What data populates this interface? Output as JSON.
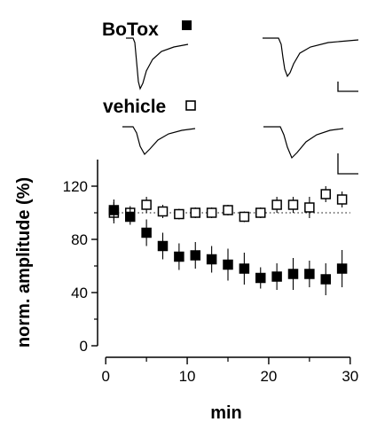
{
  "legend": {
    "botox_label": "BoTox",
    "vehicle_label": "vehicle"
  },
  "chart_data": {
    "type": "scatter",
    "xlabel": "min",
    "ylabel": "norm. amplitude (%)",
    "xlim": [
      -1,
      31
    ],
    "ylim": [
      0,
      140
    ],
    "xticks": [
      0,
      10,
      20,
      30
    ],
    "yticks": [
      0,
      40,
      80,
      120
    ],
    "y_minor_ticks": [
      20,
      60,
      100
    ],
    "reference_line": 100,
    "grid": false,
    "legend_position": "top",
    "series": [
      {
        "name": "BoTox",
        "marker": "filled-square",
        "color": "#000000",
        "x": [
          1,
          3,
          5,
          7,
          9,
          11,
          13,
          15,
          17,
          19,
          21,
          23,
          25,
          27,
          29
        ],
        "y": [
          102,
          97,
          85,
          75,
          67,
          68,
          65,
          61,
          58,
          51,
          52,
          54,
          54,
          50,
          58
        ],
        "err": [
          8,
          6,
          10,
          10,
          10,
          10,
          10,
          12,
          12,
          8,
          10,
          12,
          10,
          12,
          14
        ]
      },
      {
        "name": "vehicle",
        "marker": "open-square",
        "color": "#000000",
        "x": [
          1,
          3,
          5,
          7,
          9,
          11,
          13,
          15,
          17,
          19,
          21,
          23,
          25,
          27,
          29
        ],
        "y": [
          100,
          100,
          106,
          101,
          99,
          100,
          100,
          102,
          97,
          100,
          106,
          106,
          104,
          114,
          110
        ],
        "err": [
          8,
          5,
          6,
          5,
          4,
          4,
          4,
          4,
          4,
          4,
          6,
          6,
          8,
          6,
          6
        ]
      }
    ]
  }
}
